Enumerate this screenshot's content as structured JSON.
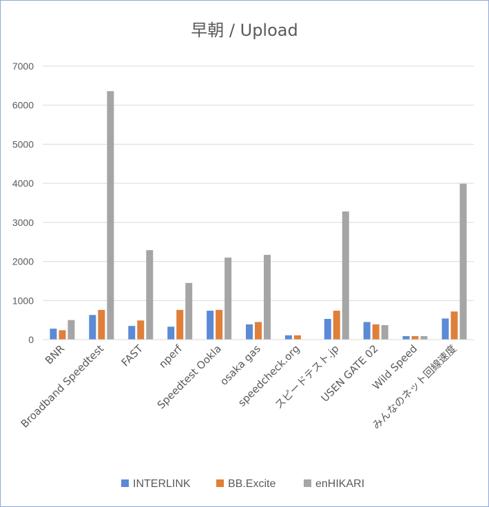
{
  "chart_data": {
    "type": "bar",
    "title": "早朝 / Upload",
    "xlabel": "",
    "ylabel": "",
    "ylim": [
      0,
      7000
    ],
    "yticks": [
      0,
      1000,
      2000,
      3000,
      4000,
      5000,
      6000,
      7000
    ],
    "grid": true,
    "legend_position": "bottom",
    "categories": [
      "BNR",
      "Broadband Speedtest",
      "FAST",
      "nperf",
      "Speedtest Ookla",
      "osaka gas",
      "speedcheck.org",
      "スピードテスト.jp",
      "USEN GATE 02",
      "Wild Speed",
      "みんなのネット回線速度"
    ],
    "series": [
      {
        "name": "INTERLINK",
        "color": "#5b8ad6",
        "values": [
          280,
          630,
          350,
          330,
          740,
          390,
          110,
          530,
          450,
          90,
          540
        ]
      },
      {
        "name": "BB.Excite",
        "color": "#e07f39",
        "values": [
          240,
          760,
          490,
          760,
          760,
          450,
          110,
          740,
          390,
          90,
          720
        ]
      },
      {
        "name": "enHIKARI",
        "color": "#a5a5a5",
        "values": [
          500,
          6360,
          2290,
          1450,
          2100,
          2170,
          0,
          3280,
          370,
          90,
          3990
        ]
      }
    ]
  }
}
